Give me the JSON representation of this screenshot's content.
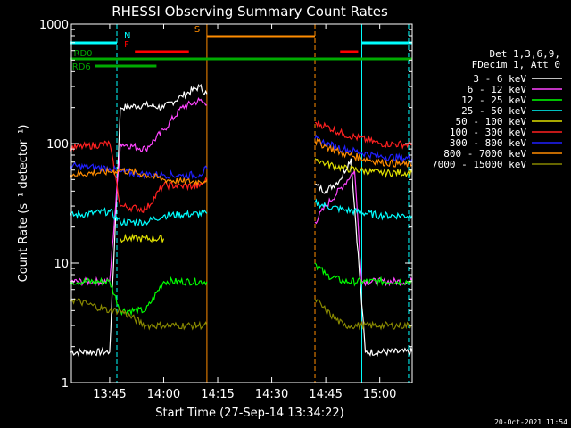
{
  "chart_data": {
    "type": "line",
    "title": "RHESSI Observing Summary Count Rates",
    "xlabel": "Start Time (27-Sep-14 13:34:22)",
    "ylabel": "Count Rate (s⁻¹ detector⁻¹)",
    "yscale": "log",
    "xlim": [
      "13:34:22",
      "15:09:00"
    ],
    "ylim": [
      1,
      1000
    ],
    "x_ticks": [
      "13:45",
      "14:00",
      "14:15",
      "14:30",
      "14:45",
      "15:00"
    ],
    "y_ticks": [
      "1",
      "10",
      "100",
      "1000"
    ],
    "grid": false,
    "legend_position": "right",
    "legend_header": [
      "Det 1,3,6,9,",
      "FDecim 1, Att 0"
    ],
    "series": [
      {
        "name": "3 - 6 keV",
        "color": "#ffffff",
        "points": [
          [
            "13:34",
            1.8
          ],
          [
            "13:45",
            1.8
          ],
          [
            "13:48",
            200
          ],
          [
            "13:55",
            210
          ],
          [
            "14:00",
            200
          ],
          [
            "14:05",
            250
          ],
          [
            "14:10",
            300
          ],
          [
            "14:12",
            260
          ],
          [
            "14:42",
            45
          ],
          [
            "14:45",
            40
          ],
          [
            "14:49",
            50
          ],
          [
            "14:52",
            75
          ],
          [
            "14:56",
            1.8
          ],
          [
            "15:09",
            1.8
          ]
        ]
      },
      {
        "name": "6 - 12 keV",
        "color": "#ff44ff",
        "points": [
          [
            "13:34",
            7
          ],
          [
            "13:45",
            7
          ],
          [
            "13:48",
            100
          ],
          [
            "13:55",
            90
          ],
          [
            "14:00",
            130
          ],
          [
            "14:05",
            200
          ],
          [
            "14:10",
            230
          ],
          [
            "14:12",
            210
          ],
          [
            "14:42",
            22
          ],
          [
            "14:45",
            30
          ],
          [
            "14:50",
            45
          ],
          [
            "14:53",
            60
          ],
          [
            "14:55",
            7
          ],
          [
            "15:09",
            7
          ]
        ]
      },
      {
        "name": "12 - 25 keV",
        "color": "#00ff00",
        "points": [
          [
            "13:34",
            7
          ],
          [
            "13:45",
            7
          ],
          [
            "13:48",
            4
          ],
          [
            "13:55",
            4
          ],
          [
            "14:00",
            7
          ],
          [
            "14:12",
            7
          ],
          [
            "14:42",
            10
          ],
          [
            "14:45",
            8
          ],
          [
            "14:50",
            7
          ],
          [
            "15:00",
            7
          ],
          [
            "15:09",
            7
          ]
        ]
      },
      {
        "name": "25 - 50 keV",
        "color": "#00ffff",
        "points": [
          [
            "13:34",
            25
          ],
          [
            "13:45",
            27
          ],
          [
            "13:48",
            22
          ],
          [
            "13:55",
            22
          ],
          [
            "14:00",
            25
          ],
          [
            "14:12",
            26
          ],
          [
            "14:42",
            32
          ],
          [
            "14:45",
            30
          ],
          [
            "14:50",
            28
          ],
          [
            "15:00",
            25
          ],
          [
            "15:09",
            25
          ]
        ]
      },
      {
        "name": "50 - 100 keV",
        "color": "#e0e000",
        "points": [
          [
            "13:48",
            16
          ],
          [
            "13:55",
            16
          ],
          [
            "14:00",
            16
          ],
          [
            "14:42",
            75
          ],
          [
            "14:45",
            68
          ],
          [
            "14:50",
            62
          ],
          [
            "15:00",
            57
          ],
          [
            "15:09",
            57
          ]
        ]
      },
      {
        "name": "100 - 300 keV",
        "color": "#ff2020",
        "points": [
          [
            "13:34",
            92
          ],
          [
            "13:45",
            100
          ],
          [
            "13:48",
            30
          ],
          [
            "13:55",
            28
          ],
          [
            "14:00",
            45
          ],
          [
            "14:05",
            44
          ],
          [
            "14:10",
            44
          ],
          [
            "14:12",
            50
          ],
          [
            "14:42",
            150
          ],
          [
            "14:45",
            140
          ],
          [
            "14:50",
            120
          ],
          [
            "15:00",
            100
          ],
          [
            "15:09",
            98
          ]
        ]
      },
      {
        "name": "300 - 800 keV",
        "color": "#2020ff",
        "points": [
          [
            "13:34",
            65
          ],
          [
            "13:45",
            62
          ],
          [
            "13:48",
            58
          ],
          [
            "13:55",
            55
          ],
          [
            "14:00",
            55
          ],
          [
            "14:05",
            54
          ],
          [
            "14:10",
            55
          ],
          [
            "14:12",
            62
          ],
          [
            "14:42",
            110
          ],
          [
            "14:45",
            100
          ],
          [
            "14:50",
            90
          ],
          [
            "15:00",
            78
          ],
          [
            "15:09",
            75
          ]
        ]
      },
      {
        "name": "800 - 7000 keV",
        "color": "#ff8c00",
        "points": [
          [
            "13:34",
            55
          ],
          [
            "13:45",
            58
          ],
          [
            "13:48",
            60
          ],
          [
            "13:55",
            55
          ],
          [
            "14:00",
            50
          ],
          [
            "14:05",
            48
          ],
          [
            "14:10",
            48
          ],
          [
            "14:12",
            50
          ],
          [
            "14:42",
            105
          ],
          [
            "14:45",
            95
          ],
          [
            "14:50",
            82
          ],
          [
            "15:00",
            70
          ],
          [
            "15:09",
            66
          ]
        ]
      },
      {
        "name": "7000 - 15000 keV",
        "color": "#888800",
        "points": [
          [
            "13:34",
            5
          ],
          [
            "13:45",
            4
          ],
          [
            "13:48",
            4
          ],
          [
            "13:55",
            3
          ],
          [
            "14:00",
            3
          ],
          [
            "14:12",
            3
          ],
          [
            "14:42",
            5
          ],
          [
            "14:45",
            4
          ],
          [
            "14:50",
            3
          ],
          [
            "15:00",
            3
          ],
          [
            "15:09",
            3
          ]
        ]
      }
    ],
    "flag_bars": [
      {
        "label": "N",
        "color": "#00ffff",
        "intervals": [
          [
            "13:34",
            "13:47"
          ],
          [
            "14:55",
            "15:09"
          ]
        ]
      },
      {
        "label": "F",
        "color": "#ff0000",
        "intervals": [
          [
            "13:52",
            "14:07"
          ],
          [
            "14:49",
            "14:54"
          ]
        ]
      },
      {
        "label": "S",
        "color": "#ff8c00",
        "intervals": [
          [
            "14:12",
            "14:42"
          ]
        ]
      },
      {
        "label": "RD0",
        "color": "#00aa00",
        "intervals": [
          [
            "13:34",
            "15:09"
          ]
        ]
      },
      {
        "label": "RD6",
        "color": "#00aa00",
        "intervals": [
          [
            "13:41",
            "13:58"
          ]
        ]
      }
    ],
    "vertical_markers": [
      {
        "time": "13:47",
        "color": "#00ffff",
        "style": "dashed"
      },
      {
        "time": "14:12",
        "color": "#ff8c00",
        "style": "solid"
      },
      {
        "time": "14:42",
        "color": "#ff8c00",
        "style": "dashed"
      },
      {
        "time": "14:55",
        "color": "#00ffff",
        "style": "solid"
      },
      {
        "time": "15:08",
        "color": "#00ffff",
        "style": "dashed"
      }
    ]
  },
  "footer": {
    "timestamp": "20-Oct-2021 11:54"
  }
}
